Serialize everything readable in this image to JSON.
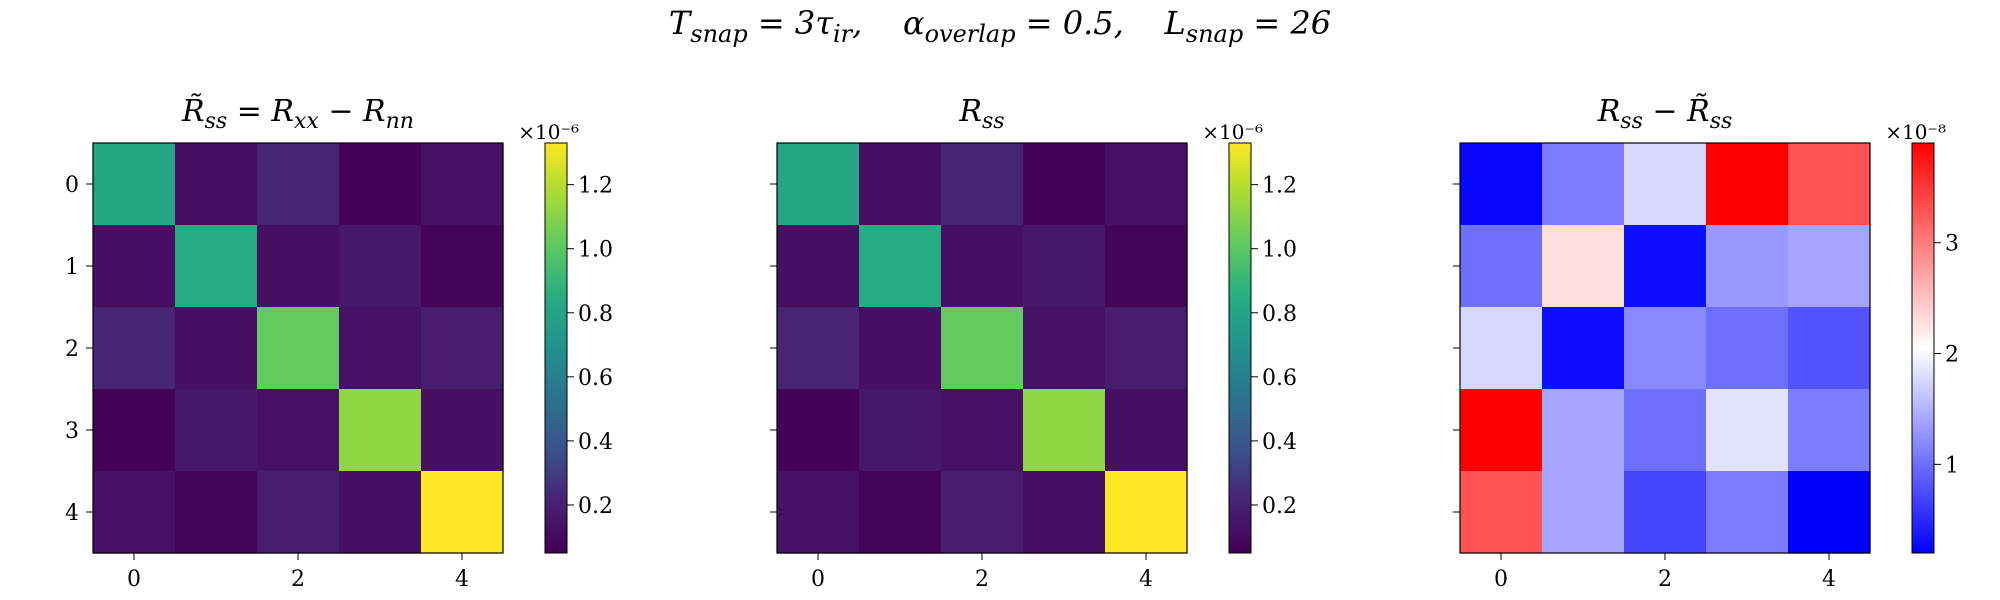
{
  "figure": {
    "suptitle_parts": [
      "T",
      "snap",
      " = 3τ",
      "ir",
      ",    α",
      "overlap",
      " = 0.5,    L",
      "snap",
      " = 26"
    ]
  },
  "chart_data": [
    {
      "type": "heatmap",
      "title": "R̃ss = Rxx − Rnn",
      "title_parts": [
        "R̃",
        "ss",
        " = R",
        "xx",
        " − R",
        "nn"
      ],
      "x_ticks": [
        "0",
        "2",
        "4"
      ],
      "y_ticks": [
        "0",
        "1",
        "2",
        "3",
        "4"
      ],
      "colormap": "viridis",
      "colorbar": {
        "scale_label": "×10⁻⁶",
        "ticks": [
          "0.2",
          "0.4",
          "0.6",
          "0.8",
          "1.0",
          "1.2"
        ],
        "tick_values": [
          0.2,
          0.4,
          0.6,
          0.8,
          1.0,
          1.2
        ],
        "range": [
          0.05,
          1.33
        ],
        "units_multiplier": 1e-06
      },
      "values": [
        [
          0.82,
          0.12,
          0.22,
          0.06,
          0.13
        ],
        [
          0.12,
          0.85,
          0.12,
          0.16,
          0.07
        ],
        [
          0.22,
          0.12,
          1.02,
          0.13,
          0.19
        ],
        [
          0.06,
          0.16,
          0.13,
          1.12,
          0.12
        ],
        [
          0.13,
          0.07,
          0.19,
          0.12,
          1.33
        ]
      ]
    },
    {
      "type": "heatmap",
      "title": "Rss",
      "title_parts": [
        "R",
        "ss"
      ],
      "x_ticks": [
        "0",
        "2",
        "4"
      ],
      "y_ticks": [
        "0",
        "1",
        "2",
        "3",
        "4"
      ],
      "colormap": "viridis",
      "colorbar": {
        "scale_label": "×10⁻⁶",
        "ticks": [
          "0.2",
          "0.4",
          "0.6",
          "0.8",
          "1.0",
          "1.2"
        ],
        "tick_values": [
          0.2,
          0.4,
          0.6,
          0.8,
          1.0,
          1.2
        ],
        "range": [
          0.05,
          1.33
        ],
        "units_multiplier": 1e-06
      },
      "values": [
        [
          0.82,
          0.12,
          0.22,
          0.06,
          0.13
        ],
        [
          0.12,
          0.85,
          0.12,
          0.16,
          0.07
        ],
        [
          0.22,
          0.12,
          1.02,
          0.13,
          0.19
        ],
        [
          0.06,
          0.16,
          0.13,
          1.12,
          0.12
        ],
        [
          0.13,
          0.07,
          0.19,
          0.12,
          1.33
        ]
      ]
    },
    {
      "type": "heatmap",
      "title": "Rss − R̃ss",
      "title_parts": [
        "R",
        "ss",
        " − R̃",
        "ss"
      ],
      "x_ticks": [
        "0",
        "2",
        "4"
      ],
      "y_ticks": [
        "0",
        "1",
        "2",
        "3",
        "4"
      ],
      "colormap": "bwr",
      "colorbar": {
        "scale_label": "×10⁻⁸",
        "ticks": [
          "1",
          "2",
          "3"
        ],
        "tick_values": [
          1,
          2,
          3
        ],
        "range": [
          0.2,
          3.9
        ],
        "units_multiplier": 1e-08
      },
      "values": [
        [
          0.25,
          1.1,
          1.75,
          3.9,
          3.3
        ],
        [
          1.0,
          2.3,
          0.3,
          1.3,
          1.4
        ],
        [
          1.75,
          0.3,
          1.2,
          1.0,
          0.8
        ],
        [
          3.9,
          1.4,
          1.0,
          1.85,
          1.1
        ],
        [
          3.3,
          1.4,
          0.7,
          1.1,
          0.2
        ]
      ]
    }
  ]
}
